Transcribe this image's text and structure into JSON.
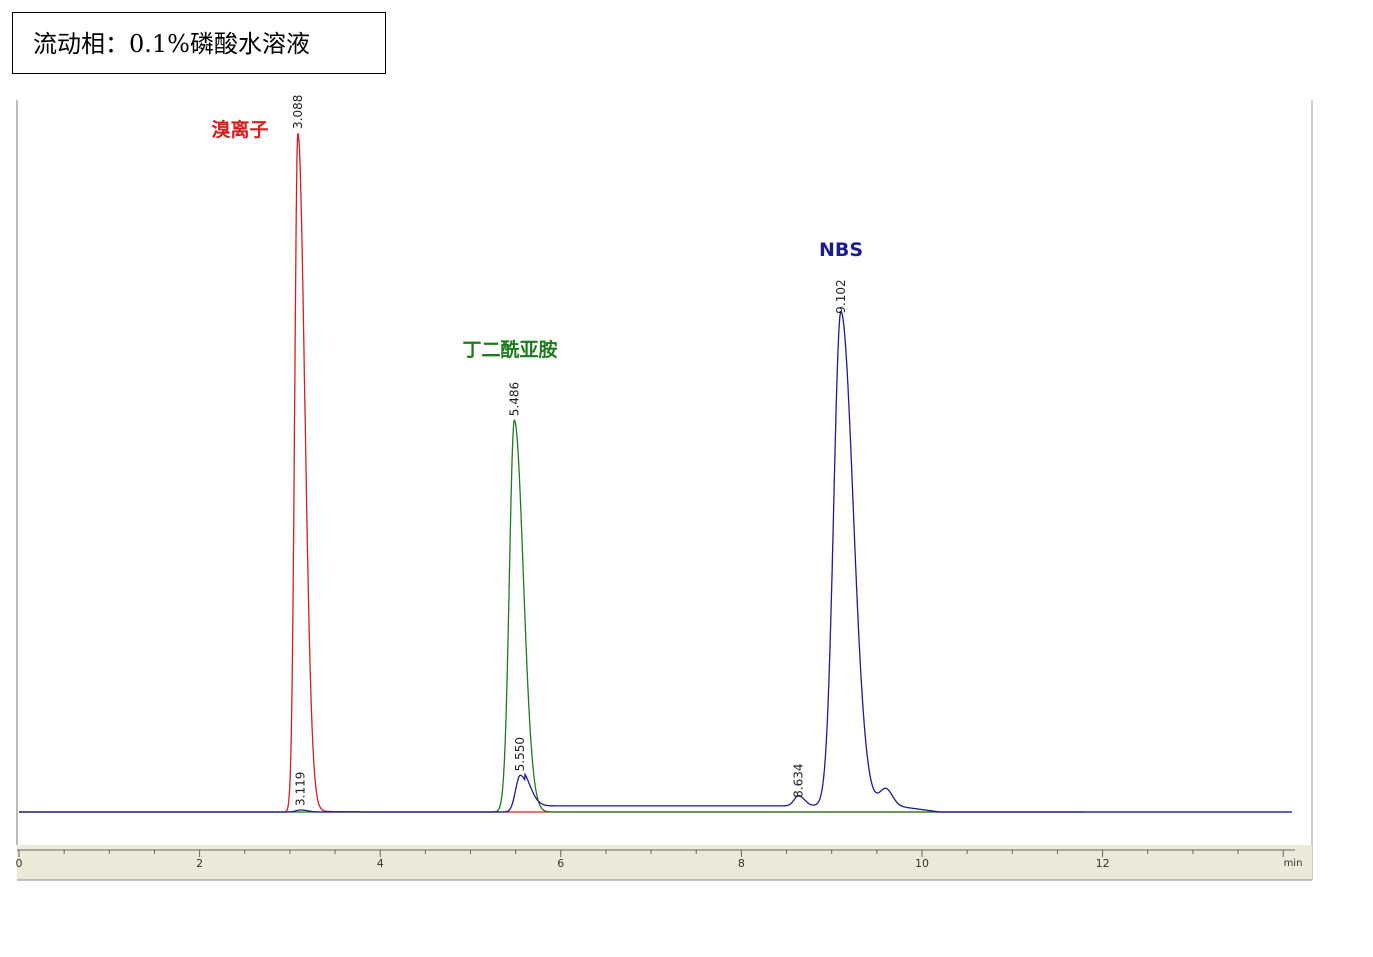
{
  "header": {
    "mobile_phase": "流动相：0.1%磷酸水溶液"
  },
  "chart_data": {
    "type": "line",
    "title": "",
    "xlabel": "min",
    "ylabel": "",
    "xlim": [
      0,
      14.1
    ],
    "ylim": [
      -4,
      101
    ],
    "x_ticks": [
      "0",
      "2",
      "4",
      "6",
      "8",
      "10",
      "12"
    ],
    "grid": false,
    "series": [
      {
        "compound": "溴离子",
        "color": "#d02020",
        "peaks": [
          {
            "rt": 3.088,
            "label": "3.088",
            "height": 100
          }
        ]
      },
      {
        "compound": "丁二酰亚胺",
        "color": "#1f7a1f",
        "peaks": [
          {
            "rt": 5.486,
            "label": "5.486",
            "height": 57.7
          }
        ]
      },
      {
        "compound": "NBS",
        "color": "#1c1c8c",
        "peaks": [
          {
            "rt": 3.119,
            "label": "3.119",
            "height": 0.3
          },
          {
            "rt": 5.55,
            "label": "5.550",
            "height": 5.4
          },
          {
            "rt": 8.634,
            "label": "8.634",
            "height": 1.5
          },
          {
            "rt": 9.102,
            "label": "9.102",
            "height": 72.8
          }
        ]
      }
    ]
  }
}
